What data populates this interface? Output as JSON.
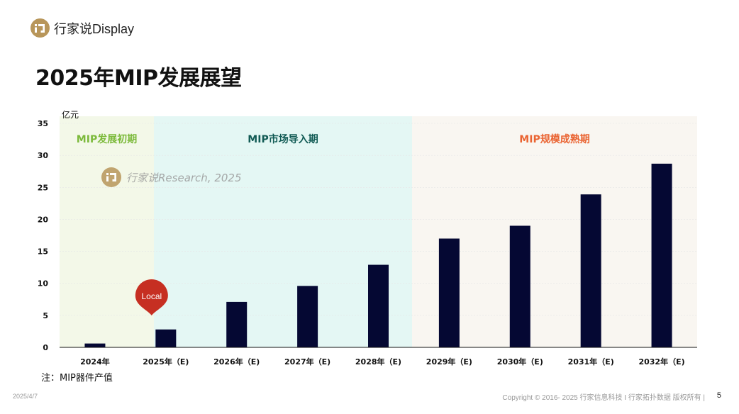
{
  "header": {
    "brand": "行家说Display"
  },
  "title": "2025年MIP发展展望",
  "note": "注：MIP器件产值",
  "footer": {
    "date": "2025/4/7",
    "copyright": "Copyright © 2016- 2025 行家信息科技 I 行家拓扑数据 版权所有 |",
    "page": "5"
  },
  "colors": {
    "bar": "#050833",
    "phase1_bg": "#f3f8e8",
    "phase2_bg": "#e4f7f4",
    "phase3_bg": "#f9f6f1",
    "phase1_label": "#7cba3b",
    "phase2_label": "#125b55",
    "phase3_label": "#ea6432",
    "marker": "#c62f22",
    "brand": "#b8965a"
  },
  "chart_data": {
    "type": "bar",
    "ylabel": "亿元",
    "ylim": [
      0,
      35
    ],
    "yticks": [
      0,
      5,
      10,
      15,
      20,
      25,
      30,
      35
    ],
    "categories": [
      "2024年",
      "2025年（E)",
      "2026年（E)",
      "2027年（E)",
      "2028年（E)",
      "2029年（E)",
      "2030年（E)",
      "2031年（E)",
      "2032年（E)"
    ],
    "values": [
      0.6,
      2.8,
      7.1,
      9.6,
      12.9,
      17.0,
      19.0,
      23.9,
      28.7
    ],
    "phases": [
      {
        "label": "MIP发展初期",
        "start": 0,
        "end": 0
      },
      {
        "label": "MIP市场导入期",
        "start": 1,
        "end": 4
      },
      {
        "label": "MIP规模成熟期",
        "start": 5,
        "end": 8
      }
    ],
    "marker": {
      "label": "Local",
      "category_index": 1
    },
    "watermark": "行家说Research, 2025"
  }
}
